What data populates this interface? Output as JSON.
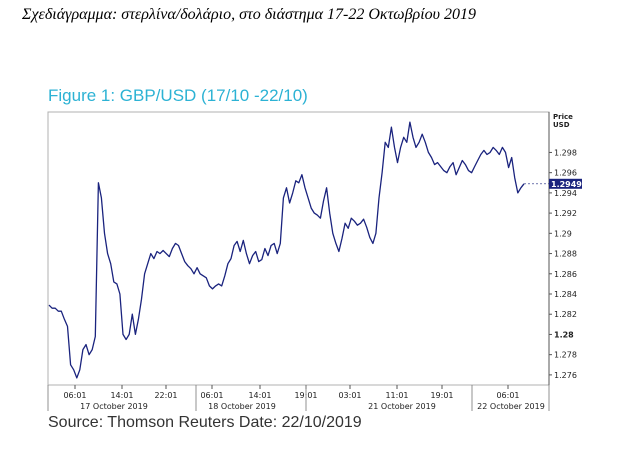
{
  "heading": "Σχεδιάγραμμα: στερλίνα/δολάριο, στο διάστημα 17-22 Οκτωβρίου 2019",
  "chart_data": {
    "type": "line",
    "title": "Figure 1: GBP/USD (17/10 -22/10)",
    "y_axis_title": [
      "Price",
      "USD"
    ],
    "ylim": [
      1.275,
      1.302
    ],
    "y_ticks": [
      "1.298",
      "1.296",
      "1.294",
      "1.292",
      "1.29",
      "1.288",
      "1.286",
      "1.284",
      "1.282",
      "1.28",
      "1.278",
      "1.276"
    ],
    "y_tick_values": [
      1.298,
      1.296,
      1.294,
      1.292,
      1.29,
      1.288,
      1.286,
      1.284,
      1.282,
      1.28,
      1.278,
      1.276
    ],
    "bold_ticks": [
      "1.28"
    ],
    "last_value_label": "1.2949",
    "last_value": 1.2949,
    "line_color": "#1a237e",
    "time_ticks": [
      "06:01",
      "14:01",
      "22:01",
      "06:01",
      "14:01",
      "19:01",
      "03:01",
      "11:01",
      "19:01",
      "06:01"
    ],
    "date_labels": [
      "17 October 2019",
      "18 October 2019",
      "21 October 2019",
      "22 October 2019"
    ],
    "series": [
      {
        "values": [
          1.2829,
          1.2826,
          1.2826,
          1.2823,
          1.2823,
          1.2815,
          1.2808,
          1.277,
          1.2765,
          1.2757,
          1.2765,
          1.2785,
          1.279,
          1.278,
          1.2785,
          1.2798,
          1.295,
          1.2935,
          1.29,
          1.288,
          1.287,
          1.2852,
          1.285,
          1.284,
          1.28,
          1.2795,
          1.28,
          1.282,
          1.28,
          1.2815,
          1.2835,
          1.286,
          1.287,
          1.288,
          1.2875,
          1.2882,
          1.288,
          1.2883,
          1.288,
          1.2877,
          1.2885,
          1.289,
          1.2888,
          1.288,
          1.2872,
          1.2868,
          1.2865,
          1.286,
          1.2866,
          1.286,
          1.2858,
          1.2856,
          1.2848,
          1.2845,
          1.2848,
          1.285,
          1.2848,
          1.2858,
          1.287,
          1.2875,
          1.2888,
          1.2892,
          1.2882,
          1.2893,
          1.288,
          1.287,
          1.2878,
          1.2882,
          1.2872,
          1.2874,
          1.2885,
          1.2878,
          1.2888,
          1.289,
          1.288,
          1.289,
          1.2935,
          1.2945,
          1.293,
          1.294,
          1.2952,
          1.295,
          1.2958,
          1.2945,
          1.2935,
          1.2925,
          1.292,
          1.2918,
          1.2915,
          1.2932,
          1.2945,
          1.292,
          1.29,
          1.289,
          1.2882,
          1.2895,
          1.291,
          1.2905,
          1.2915,
          1.2912,
          1.2908,
          1.291,
          1.2914,
          1.2906,
          1.2896,
          1.289,
          1.29,
          1.2935,
          1.296,
          1.299,
          1.2985,
          1.3005,
          1.2985,
          1.297,
          1.2985,
          1.2995,
          1.299,
          1.301,
          1.2995,
          1.2985,
          1.299,
          1.2998,
          1.299,
          1.298,
          1.2975,
          1.2968,
          1.297,
          1.2966,
          1.2962,
          1.296,
          1.2966,
          1.297,
          1.2958,
          1.2965,
          1.2972,
          1.2968,
          1.2962,
          1.296,
          1.2966,
          1.2972,
          1.2978,
          1.2982,
          1.2978,
          1.298,
          1.2985,
          1.2982,
          1.2978,
          1.2985,
          1.298,
          1.2965,
          1.2975,
          1.2955,
          1.294,
          1.2945,
          1.2949
        ]
      }
    ]
  },
  "source": "Source: Thomson Reuters Date: 22/10/2019"
}
